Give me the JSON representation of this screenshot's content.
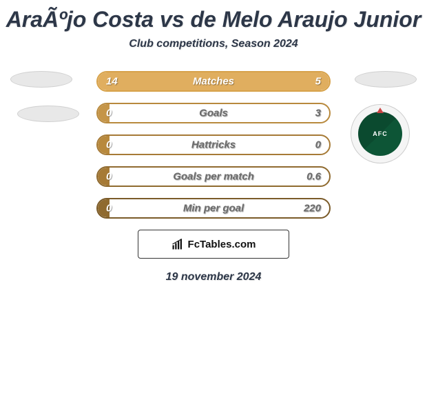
{
  "title": "AraÃºjo Costa vs de Melo Araujo Junior",
  "subtitle": "Club competitions, Season 2024",
  "date": "19 november 2024",
  "attribution": "FcTables.com",
  "colors": {
    "border1": "#d7a24a",
    "fill1": "#e0ae5f",
    "border2": "#b8893d",
    "fill2": "#c59548",
    "border3": "#a67a36",
    "fill3": "#b8893d",
    "border4": "#8f6a2f",
    "fill4": "#a67a36",
    "border5": "#7a5a28",
    "fill5": "#8f6a2f",
    "label_light": "#ffffff",
    "label_dark": "#6b6b6b",
    "val_right_light": "#ffffff",
    "val_right_dark": "#6b6b6b"
  },
  "badge_text": "AFC",
  "stats": [
    {
      "label": "Matches",
      "left_val": "14",
      "right_val": "5",
      "left_pct": 72,
      "right_pct": 28,
      "label_color": "#ffffff",
      "val_right_color": "#ffffff"
    },
    {
      "label": "Goals",
      "left_val": "0",
      "right_val": "3",
      "left_pct": 5,
      "right_pct": 0,
      "label_color": "#6b6b6b",
      "val_right_color": "#6b6b6b"
    },
    {
      "label": "Hattricks",
      "left_val": "0",
      "right_val": "0",
      "left_pct": 5,
      "right_pct": 0,
      "label_color": "#6b6b6b",
      "val_right_color": "#6b6b6b"
    },
    {
      "label": "Goals per match",
      "left_val": "0",
      "right_val": "0.6",
      "left_pct": 5,
      "right_pct": 0,
      "label_color": "#6b6b6b",
      "val_right_color": "#6b6b6b"
    },
    {
      "label": "Min per goal",
      "left_val": "0",
      "right_val": "220",
      "left_pct": 5,
      "right_pct": 0,
      "label_color": "#6b6b6b",
      "val_right_color": "#6b6b6b"
    }
  ]
}
